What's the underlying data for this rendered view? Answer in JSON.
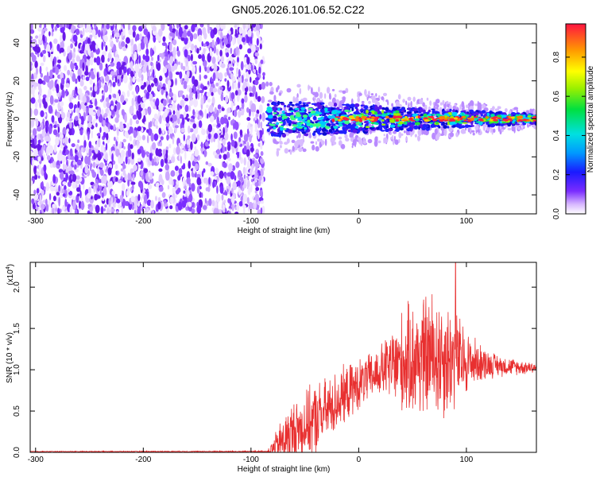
{
  "title": "GN05.2026.101.06.52.C22",
  "chart_data": [
    {
      "type": "heatmap",
      "title": "GN05.2026.101.06.52.C22",
      "xlabel": "Height of straight line (km)",
      "ylabel": "Frequency (Hz)",
      "xlim": [
        -305,
        165
      ],
      "ylim": [
        -50,
        50
      ],
      "x_ticks": [
        -300,
        -200,
        -100,
        0,
        100
      ],
      "y_ticks": [
        -40,
        -20,
        0,
        20,
        40
      ],
      "noise_region_x": [
        -305,
        -85
      ],
      "signal_band_center_hz": 0,
      "signal_band_halfwidth_hz": [
        12,
        3
      ],
      "colorbar": {
        "label": "Normalized spectral amplitude",
        "range": [
          0.0,
          0.97
        ],
        "ticks": [
          "0.0",
          "0.2",
          "0.4",
          "0.6",
          "0.8"
        ]
      }
    },
    {
      "type": "line",
      "xlabel": "Height of straight line (km)",
      "ylabel": "SNR (10 * v/v)",
      "exponent_label": "(x10",
      "exponent": "4",
      "xlim": [
        -305,
        165
      ],
      "ylim": [
        0,
        2.3
      ],
      "x_ticks": [
        -300,
        -200,
        -100,
        0,
        100
      ],
      "y_ticks": [
        "0.0",
        "0.5",
        "1.0",
        "1.5",
        "2.0"
      ],
      "color": "#e83030",
      "series": [
        {
          "name": "SNR",
          "x": [
            -305,
            -85,
            -75,
            -70,
            -60,
            -50,
            -40,
            -30,
            -20,
            -10,
            0,
            10,
            20,
            30,
            40,
            50,
            60,
            70,
            80,
            90,
            100,
            110,
            120,
            130,
            140,
            150,
            165
          ],
          "mean": [
            0.01,
            0.01,
            0.08,
            0.15,
            0.25,
            0.32,
            0.4,
            0.5,
            0.62,
            0.72,
            0.82,
            0.9,
            0.98,
            1.05,
            1.08,
            1.12,
            1.15,
            1.18,
            1.15,
            1.12,
            1.1,
            1.09,
            1.07,
            1.05,
            1.04,
            1.03,
            1.03
          ],
          "amp": [
            0.005,
            0.01,
            0.25,
            0.35,
            0.45,
            0.45,
            0.5,
            0.45,
            0.42,
            0.38,
            0.35,
            0.33,
            0.35,
            0.5,
            0.7,
            0.8,
            0.85,
            0.9,
            0.85,
            0.7,
            0.45,
            0.3,
            0.2,
            0.15,
            0.12,
            0.1,
            0.08
          ],
          "peak": {
            "x": 90,
            "y": 2.3
          }
        }
      ]
    }
  ]
}
